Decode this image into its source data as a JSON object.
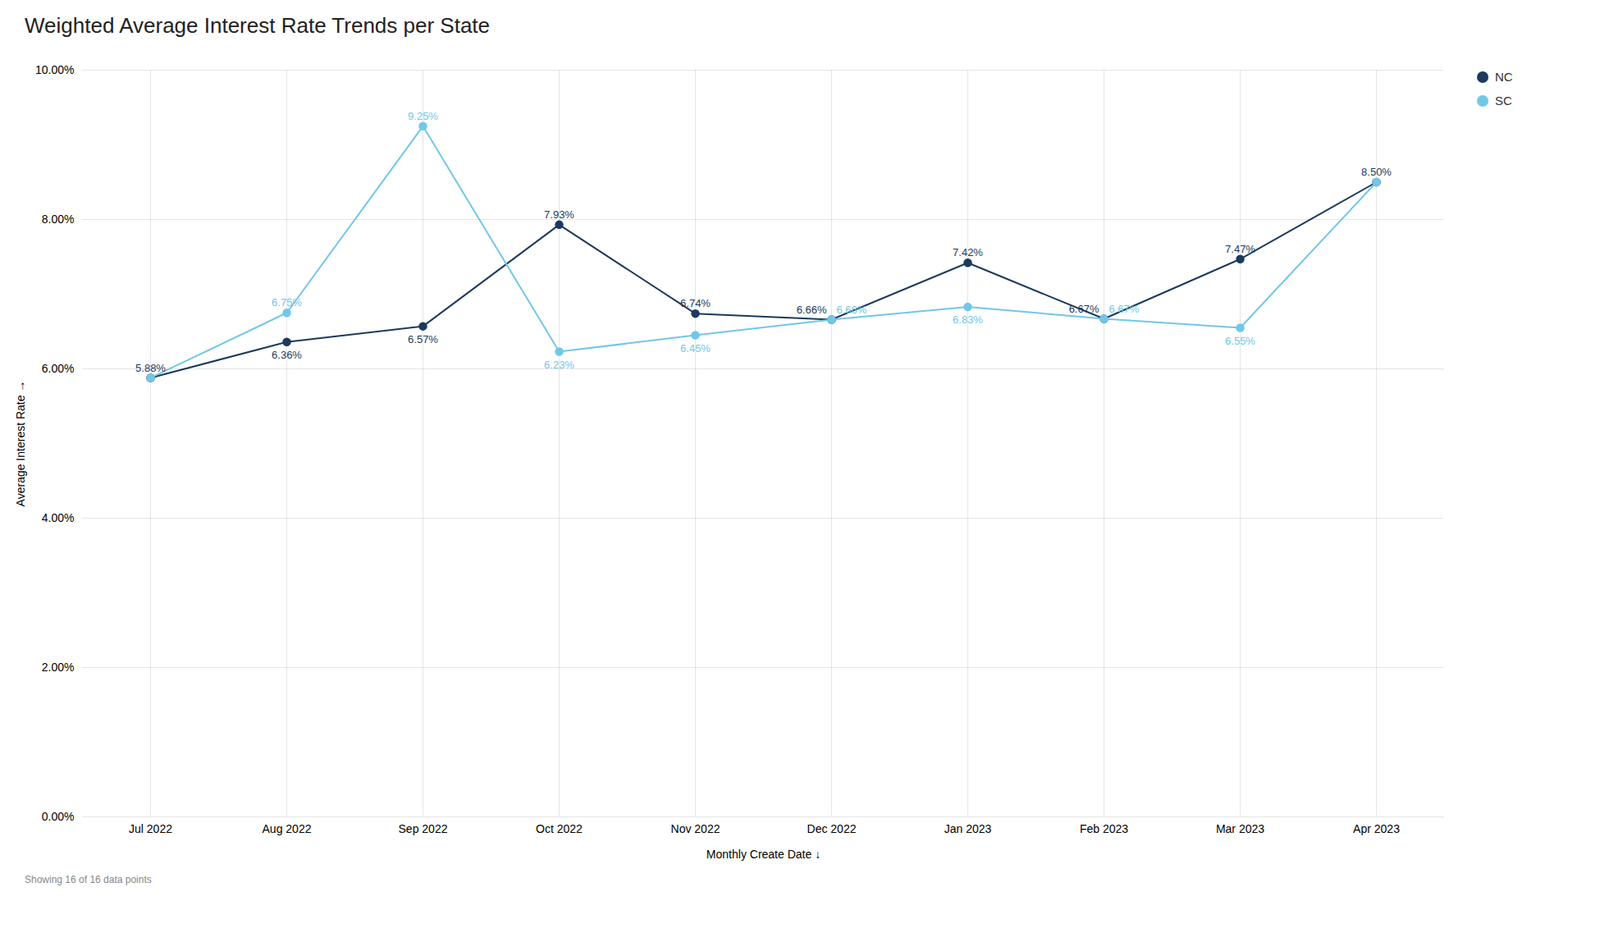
{
  "chart_data": {
    "type": "line",
    "title": "Weighted Average Interest Rate Trends per State",
    "xlabel": "Monthly Create Date ↓",
    "ylabel": "Average Interest Rate →",
    "footnote": "Showing 16 of 16 data points",
    "categories": [
      "Jul 2022",
      "Aug 2022",
      "Sep 2022",
      "Oct 2022",
      "Nov 2022",
      "Dec 2022",
      "Jan 2023",
      "Feb 2023",
      "Mar 2023",
      "Apr 2023"
    ],
    "series": [
      {
        "name": "NC",
        "color": "#1b3a5c",
        "values": [
          5.88,
          6.36,
          6.57,
          7.93,
          6.74,
          6.66,
          7.42,
          6.67,
          7.47,
          8.5
        ],
        "value_labels": [
          "5.88%",
          "6.36%",
          "6.57%",
          "7.93%",
          "6.74%",
          "6.66%",
          "7.42%",
          "6.67%",
          "7.47%",
          "8.50%"
        ]
      },
      {
        "name": "SC",
        "color": "#72c7e8",
        "values": [
          5.88,
          6.75,
          9.25,
          6.23,
          6.45,
          6.66,
          6.83,
          6.67,
          6.55,
          8.5
        ],
        "value_labels": [
          null,
          "6.75%",
          "9.25%",
          "6.23%",
          "6.45%",
          "6.66%",
          "6.83%",
          "6.67%",
          "6.55%",
          null
        ]
      }
    ],
    "ylim": [
      0,
      10
    ],
    "yticks": [
      {
        "value": 0,
        "label": "0.00%"
      },
      {
        "value": 2,
        "label": "2.00%"
      },
      {
        "value": 4,
        "label": "4.00%"
      },
      {
        "value": 6,
        "label": "6.00%"
      },
      {
        "value": 8,
        "label": "8.00%"
      },
      {
        "value": 10,
        "label": "10.00%"
      }
    ],
    "grid": true,
    "legend": "upper right",
    "data_labels": true,
    "marker": "circle"
  }
}
